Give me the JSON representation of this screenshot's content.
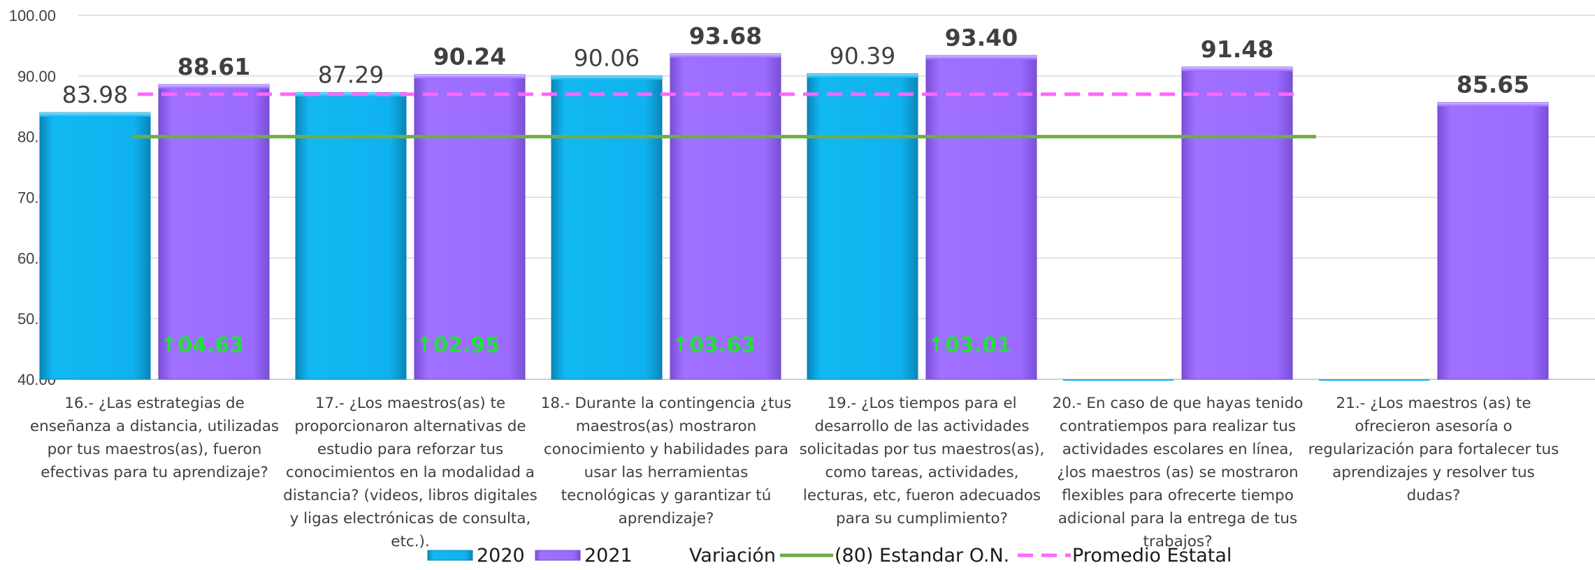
{
  "chart_data": {
    "type": "bar",
    "title": "",
    "ylim": [
      40,
      100
    ],
    "yticks": [
      "40.00",
      "50.00",
      "60.00",
      "70.00",
      "80.00",
      "90.00",
      "100.00"
    ],
    "grid": true,
    "categories": [
      "16.- ¿Las estrategias de enseñanza a distancia, utilizadas por tus maestros(as), fueron efectivas para tu aprendizaje?",
      "17.- ¿Los maestros(as) te proporcionaron alternativas de estudio para reforzar tus conocimientos en la modalidad a distancia? (videos, libros digitales y ligas electrónicas de consulta, etc.).",
      "18.- Durante la contingencia ¿tus maestros(as) mostraron conocimiento y habilidades para usar las herramientas tecnológicas y garantizar tú aprendizaje?",
      "19.- ¿Los tiempos para el desarrollo de las actividades solicitadas por tus maestros(as), como tareas, actividades, lecturas, etc, fueron adecuados para su cumplimiento?",
      "20.- En caso de que hayas tenido contratiempos para realizar tus actividades escolares en línea, ¿los maestros (as) se mostraron flexibles para ofrecerte tiempo adicional para la entrega de tus trabajos?",
      "21.- ¿Los maestros (as) te ofrecieron asesoría o regularización para fortalecer tus aprendizajes y resolver tus dudas?"
    ],
    "category_lines": [
      [
        "16.- ¿Las estrategias de",
        "enseñanza a distancia, utilizadas",
        "por tus maestros(as), fueron",
        "efectivas para tu aprendizaje?"
      ],
      [
        "17.- ¿Los maestros(as) te",
        "proporcionaron alternativas de",
        "estudio para reforzar tus",
        "conocimientos en la modalidad a",
        "distancia? (videos, libros digitales",
        "y ligas electrónicas de consulta,",
        "etc.)."
      ],
      [
        "18.- Durante la contingencia ¿tus",
        "maestros(as) mostraron",
        "conocimiento y habilidades para",
        "usar las herramientas",
        "tecnológicas y garantizar tú",
        "aprendizaje?"
      ],
      [
        "19.- ¿Los tiempos para el",
        "desarrollo de las actividades",
        "solicitadas por tus maestros(as),",
        "como tareas, actividades,",
        "lecturas, etc, fueron adecuados",
        "para su cumplimiento?"
      ],
      [
        "20.- En caso de que hayas tenido",
        "contratiempos para realizar tus",
        "actividades escolares en línea,",
        "¿los maestros (as) se mostraron",
        "flexibles para ofrecerte tiempo",
        "adicional para la entrega de tus",
        "trabajos?"
      ],
      [
        "21.- ¿Los maestros (as) te",
        "ofrecieron asesoría o",
        "regularización para fortalecer tus",
        "aprendizajes y resolver tus",
        "dudas?"
      ]
    ],
    "series": [
      {
        "name": "2020",
        "color": "#0fb4f0",
        "values": [
          83.98,
          87.29,
          90.06,
          90.39,
          null,
          null
        ],
        "labels": [
          "83.98",
          "87.29",
          "90.06",
          "90.39",
          "",
          ""
        ]
      },
      {
        "name": "2021",
        "color": "#9966ff",
        "values": [
          88.61,
          90.24,
          93.68,
          93.4,
          91.48,
          85.65
        ],
        "labels": [
          "88.61",
          "90.24",
          "93.68",
          "93.40",
          "91.48",
          "85.65"
        ]
      }
    ],
    "variation": {
      "name": "Variación",
      "color": "#22e03a",
      "arrow": "↑",
      "values": [
        4.63,
        2.95,
        3.63,
        3.01,
        null,
        null
      ],
      "labels": [
        "04.63",
        "02.95",
        "03.63",
        "03.01",
        "",
        ""
      ]
    },
    "lines": [
      {
        "name": "(80) Estandar O.N.",
        "value": 80,
        "color": "#70ad47",
        "style": "solid"
      },
      {
        "name": "Promedio  Estatal",
        "value": 87,
        "color": "#ff66ff",
        "style": "dashed"
      }
    ],
    "legend_position": "bottom"
  }
}
